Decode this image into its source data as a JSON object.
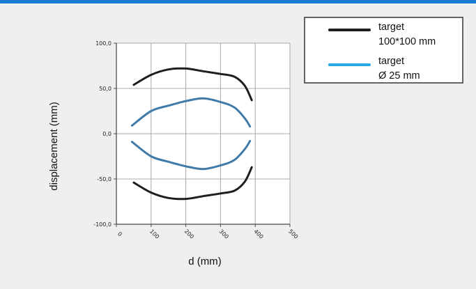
{
  "chart_data": {
    "type": "line",
    "xlabel": "d (mm)",
    "ylabel": "displacement (mm)",
    "xlim": [
      0,
      500
    ],
    "ylim": [
      -100,
      100
    ],
    "x_ticks": [
      "0",
      "100",
      "200",
      "300",
      "400",
      "500"
    ],
    "y_ticks": [
      "100,0",
      "50,0",
      "0,0",
      "-50,0",
      "-100,0"
    ],
    "grid": true,
    "legend_position": "top-right",
    "series": [
      {
        "name": "target 100*100 mm",
        "legend_lines": [
          "target",
          "100*100 mm"
        ],
        "color": "#1e1e1e",
        "upper": {
          "x": [
            50,
            100,
            150,
            200,
            250,
            300,
            340,
            370,
            390
          ],
          "y": [
            54,
            65,
            71,
            72,
            69,
            66,
            63,
            53,
            37
          ]
        },
        "lower": {
          "x": [
            50,
            100,
            150,
            200,
            250,
            300,
            340,
            370,
            390
          ],
          "y": [
            -54,
            -65,
            -71,
            -72,
            -69,
            -66,
            -63,
            -53,
            -37
          ]
        }
      },
      {
        "name": "target Ø 25 mm",
        "legend_lines": [
          "target",
          "Ø 25 mm"
        ],
        "color": "#3f7aa8",
        "legend_color": "#29a7e8",
        "upper": {
          "x": [
            45,
            100,
            150,
            200,
            250,
            300,
            340,
            370,
            385
          ],
          "y": [
            9,
            25,
            31,
            36,
            39,
            35,
            29,
            17,
            8
          ]
        },
        "lower": {
          "x": [
            45,
            100,
            150,
            200,
            250,
            300,
            340,
            370,
            385
          ],
          "y": [
            -9,
            -25,
            -31,
            -36,
            -39,
            -35,
            -29,
            -17,
            -8
          ]
        }
      }
    ]
  }
}
